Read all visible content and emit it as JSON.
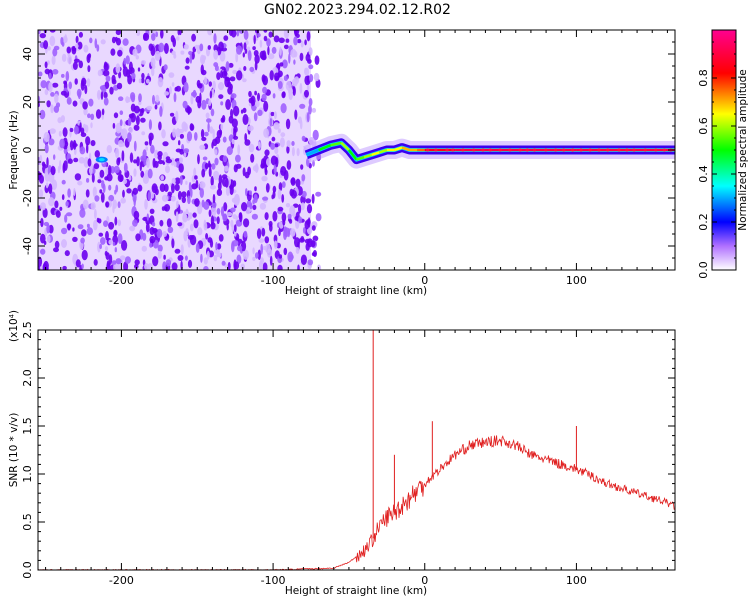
{
  "title": "GN02.2023.294.02.12.R02",
  "chart_data": [
    {
      "type": "heatmap",
      "title": "GN02.2023.294.02.12.R02",
      "xlabel": "Height of straight line (km)",
      "ylabel": "Frequency (Hz)",
      "xlim": [
        -255,
        165
      ],
      "ylim": [
        -50,
        50
      ],
      "xticks": [
        -200,
        -100,
        0,
        100
      ],
      "yticks": [
        -40,
        -20,
        0,
        20,
        40
      ],
      "colorbar": {
        "label": "Normalized spectral amplitude",
        "range": [
          0.0,
          1.0
        ],
        "ticks": [
          "0.0",
          "0.2",
          "0.4",
          "0.6",
          "0.8"
        ],
        "colormap": [
          "#ffffff",
          "#7a00ff",
          "#0000ff",
          "#00ffff",
          "#00ff00",
          "#ffff00",
          "#ff0000",
          "#ff00aa"
        ]
      },
      "noise_region_x": [
        -255,
        -75
      ],
      "signal_track": {
        "x": [
          -78,
          -70,
          -62,
          -55,
          -50,
          -45,
          -40,
          -35,
          -30,
          -25,
          -20,
          -15,
          -10,
          -5,
          0,
          20,
          50,
          100,
          165
        ],
        "freq": [
          -2,
          0,
          2,
          3,
          0,
          -4,
          -3,
          -2,
          -1,
          0,
          0,
          1,
          0,
          0,
          0,
          0,
          0,
          0,
          0
        ],
        "amplitude": [
          0.3,
          0.5,
          0.55,
          0.6,
          0.5,
          0.55,
          0.6,
          0.65,
          0.6,
          0.65,
          0.65,
          0.7,
          0.7,
          0.75,
          0.85,
          0.9,
          0.9,
          0.9,
          0.85
        ]
      }
    },
    {
      "type": "line",
      "xlabel": "Height of straight line (km)",
      "ylabel": "SNR (10 * v/v)",
      "y_multiplier": "(x10⁴)",
      "xlim": [
        -255,
        165
      ],
      "ylim": [
        0,
        2.5
      ],
      "xticks": [
        -200,
        -100,
        0,
        100
      ],
      "yticks": [
        "0.0",
        "0.5",
        "1.0",
        "1.5",
        "2.0",
        "2.5"
      ],
      "color": "#e02020",
      "series": [
        {
          "x": [
            -255,
            -200,
            -100,
            -60,
            -50,
            -40,
            -35,
            -30,
            -25,
            -20,
            -10,
            0,
            10,
            20,
            30,
            40,
            50,
            60,
            70,
            80,
            90,
            100,
            110,
            120,
            130,
            140,
            150,
            160,
            165
          ],
          "values": [
            0.0,
            0.0,
            0.0,
            0.02,
            0.08,
            0.2,
            0.3,
            0.45,
            0.55,
            0.6,
            0.75,
            0.9,
            1.05,
            1.2,
            1.3,
            1.33,
            1.35,
            1.3,
            1.2,
            1.15,
            1.1,
            1.05,
            0.98,
            0.9,
            0.85,
            0.8,
            0.75,
            0.7,
            0.66
          ]
        }
      ],
      "spikes": [
        {
          "x": -34,
          "value": 2.5
        },
        {
          "x": -20,
          "value": 1.2
        },
        {
          "x": 5,
          "value": 1.55
        },
        {
          "x": 100,
          "value": 1.5
        }
      ]
    }
  ],
  "labels": {
    "x_top": "Height of straight line (km)",
    "x_bottom": "Height of straight line (km)",
    "y_top": "Frequency (Hz)",
    "y_bottom": "SNR (10 * v/v)",
    "y_bottom_mult": "(x10⁴)",
    "colorbar": "Normalized spectral amplitude"
  }
}
